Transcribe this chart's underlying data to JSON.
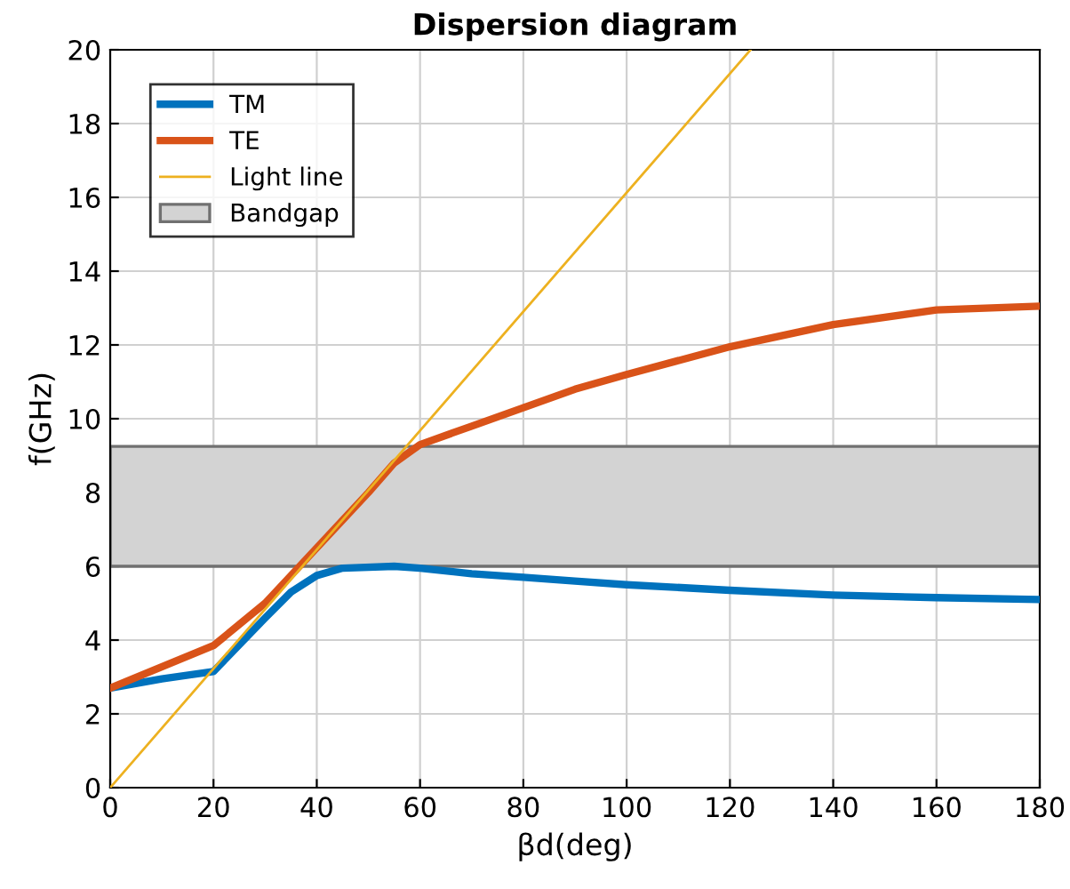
{
  "chart_data": {
    "type": "line",
    "title": "Dispersion diagram",
    "xlabel": "βd(deg)",
    "ylabel": "f(GHz)",
    "series": [
      {
        "name": "TM",
        "color": "#0072bd",
        "x": [
          0,
          10,
          20,
          30,
          35,
          40,
          45,
          55,
          60,
          70,
          80,
          90,
          100,
          120,
          140,
          160,
          180
        ],
        "values": [
          2.7,
          2.95,
          3.15,
          4.6,
          5.3,
          5.75,
          5.95,
          6.0,
          5.95,
          5.8,
          5.7,
          5.6,
          5.5,
          5.35,
          5.22,
          5.15,
          5.1
        ]
      },
      {
        "name": "TE",
        "color": "#d95319",
        "x": [
          0,
          20,
          30,
          40,
          50,
          55,
          60,
          70,
          80,
          90,
          100,
          120,
          140,
          160,
          180
        ],
        "values": [
          2.7,
          3.85,
          5.0,
          6.5,
          8.0,
          8.8,
          9.3,
          9.8,
          10.3,
          10.8,
          11.2,
          11.95,
          12.55,
          12.95,
          13.05
        ]
      },
      {
        "name": "Light line",
        "color": "#edb120",
        "x": [
          0,
          124
        ],
        "values": [
          0,
          20
        ]
      }
    ],
    "bands": [
      {
        "axis": "y",
        "from": 6.0,
        "to": 9.25,
        "label": "Bandgap",
        "color": "#d3d3d3"
      }
    ],
    "xlim": [
      0,
      180
    ],
    "xticks": [
      0,
      20,
      40,
      60,
      80,
      100,
      120,
      140,
      160,
      180
    ],
    "ylim": [
      0,
      20
    ],
    "yticks": [
      0,
      2,
      4,
      6,
      8,
      10,
      12,
      14,
      16,
      18,
      20
    ],
    "grid": true,
    "legend": "top left"
  }
}
